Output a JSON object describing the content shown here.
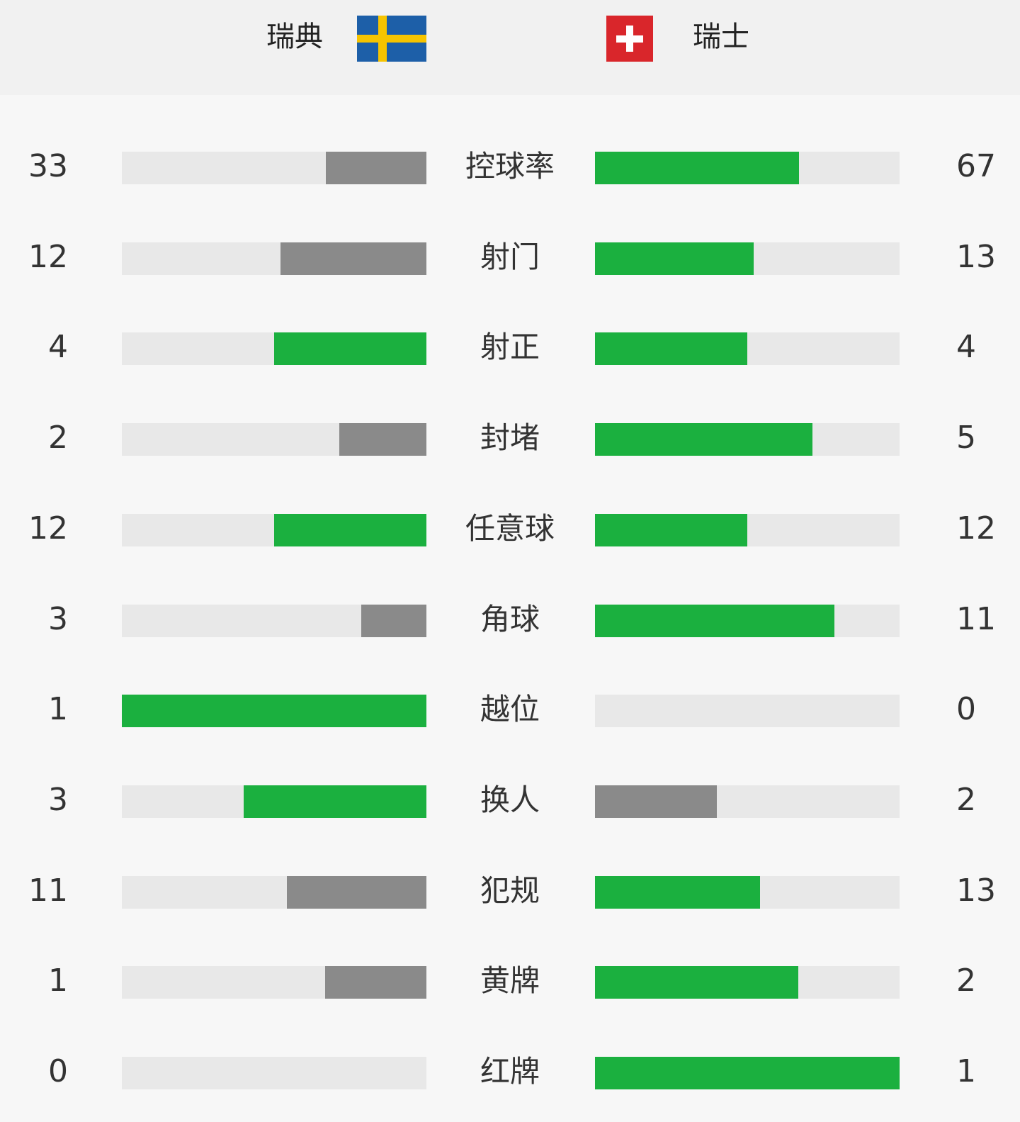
{
  "header": {
    "home": "瑞典",
    "away": "瑞士"
  },
  "colors": {
    "higher": "#1bb03f",
    "lower": "#8a8a8a",
    "track": "#e8e8e8"
  },
  "stats": [
    {
      "label": "控球率",
      "home": 33,
      "away": 67
    },
    {
      "label": "射门",
      "home": 12,
      "away": 13
    },
    {
      "label": "射正",
      "home": 4,
      "away": 4
    },
    {
      "label": "封堵",
      "home": 2,
      "away": 5
    },
    {
      "label": "任意球",
      "home": 12,
      "away": 12
    },
    {
      "label": "角球",
      "home": 3,
      "away": 11
    },
    {
      "label": "越位",
      "home": 1,
      "away": 0
    },
    {
      "label": "换人",
      "home": 3,
      "away": 2
    },
    {
      "label": "犯规",
      "home": 11,
      "away": 13
    },
    {
      "label": "黄牌",
      "home": 1,
      "away": 2
    },
    {
      "label": "红牌",
      "home": 0,
      "away": 1
    }
  ]
}
